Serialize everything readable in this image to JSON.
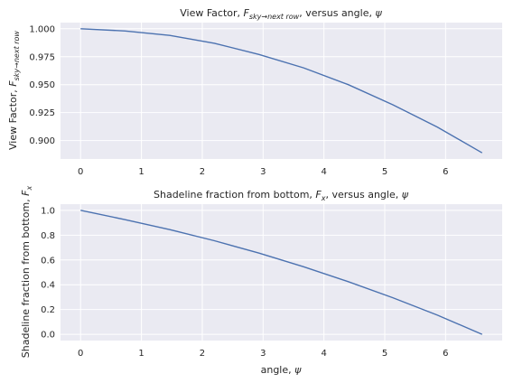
{
  "chart_data": [
    {
      "type": "line",
      "title": "View Factor, F_{sky→next row}, versus angle, ψ",
      "title_parts": {
        "pre": "View Factor, ",
        "sym": "F",
        "sub": "sky→next row",
        "post": ", versus angle, ",
        "psi": "ψ"
      },
      "xlabel": "",
      "ylabel": "View Factor, F_{sky→next row}",
      "ylabel_parts": {
        "pre": "View Factor, ",
        "sym": "F",
        "sub": "sky→next row"
      },
      "xlim": [
        -0.33,
        6.93
      ],
      "ylim": [
        0.8835,
        1.0055
      ],
      "xticks": [
        0,
        1,
        2,
        3,
        4,
        5,
        6
      ],
      "yticks": [
        0.9,
        0.925,
        0.95,
        0.975,
        1.0
      ],
      "ytick_labels": [
        "0.900",
        "0.925",
        "0.950",
        "0.975",
        "1.000"
      ],
      "grid": true,
      "color": "#4c72b0",
      "x": [
        0,
        0.733,
        1.466,
        2.2,
        2.933,
        3.666,
        4.4,
        5.133,
        5.866,
        6.6
      ],
      "y": [
        1.0,
        0.998,
        0.994,
        0.987,
        0.977,
        0.965,
        0.95,
        0.932,
        0.912,
        0.889
      ]
    },
    {
      "type": "line",
      "title": "Shadeline fraction from bottom, F_x, versus angle, ψ",
      "title_parts": {
        "pre": "Shadeline fraction from bottom, ",
        "sym": "F",
        "sub": "x",
        "post": ", versus angle, ",
        "psi": "ψ"
      },
      "xlabel": "angle, ψ",
      "xlabel_parts": {
        "pre": "angle, ",
        "psi": "ψ"
      },
      "ylabel": "Shadeline fraction from bottom, F_x",
      "ylabel_parts": {
        "pre": "Shadeline fraction from bottom, ",
        "sym": "F",
        "sub": "x"
      },
      "xlim": [
        -0.33,
        6.93
      ],
      "ylim": [
        -0.05,
        1.05
      ],
      "xticks": [
        0,
        1,
        2,
        3,
        4,
        5,
        6
      ],
      "yticks": [
        0.0,
        0.2,
        0.4,
        0.6,
        0.8,
        1.0
      ],
      "ytick_labels": [
        "0.0",
        "0.2",
        "0.4",
        "0.6",
        "0.8",
        "1.0"
      ],
      "grid": true,
      "color": "#4c72b0",
      "x": [
        0,
        0.733,
        1.466,
        2.2,
        2.933,
        3.666,
        4.4,
        5.133,
        5.866,
        6.6
      ],
      "y": [
        1.0,
        0.925,
        0.845,
        0.755,
        0.655,
        0.545,
        0.425,
        0.295,
        0.155,
        0.0
      ]
    }
  ]
}
